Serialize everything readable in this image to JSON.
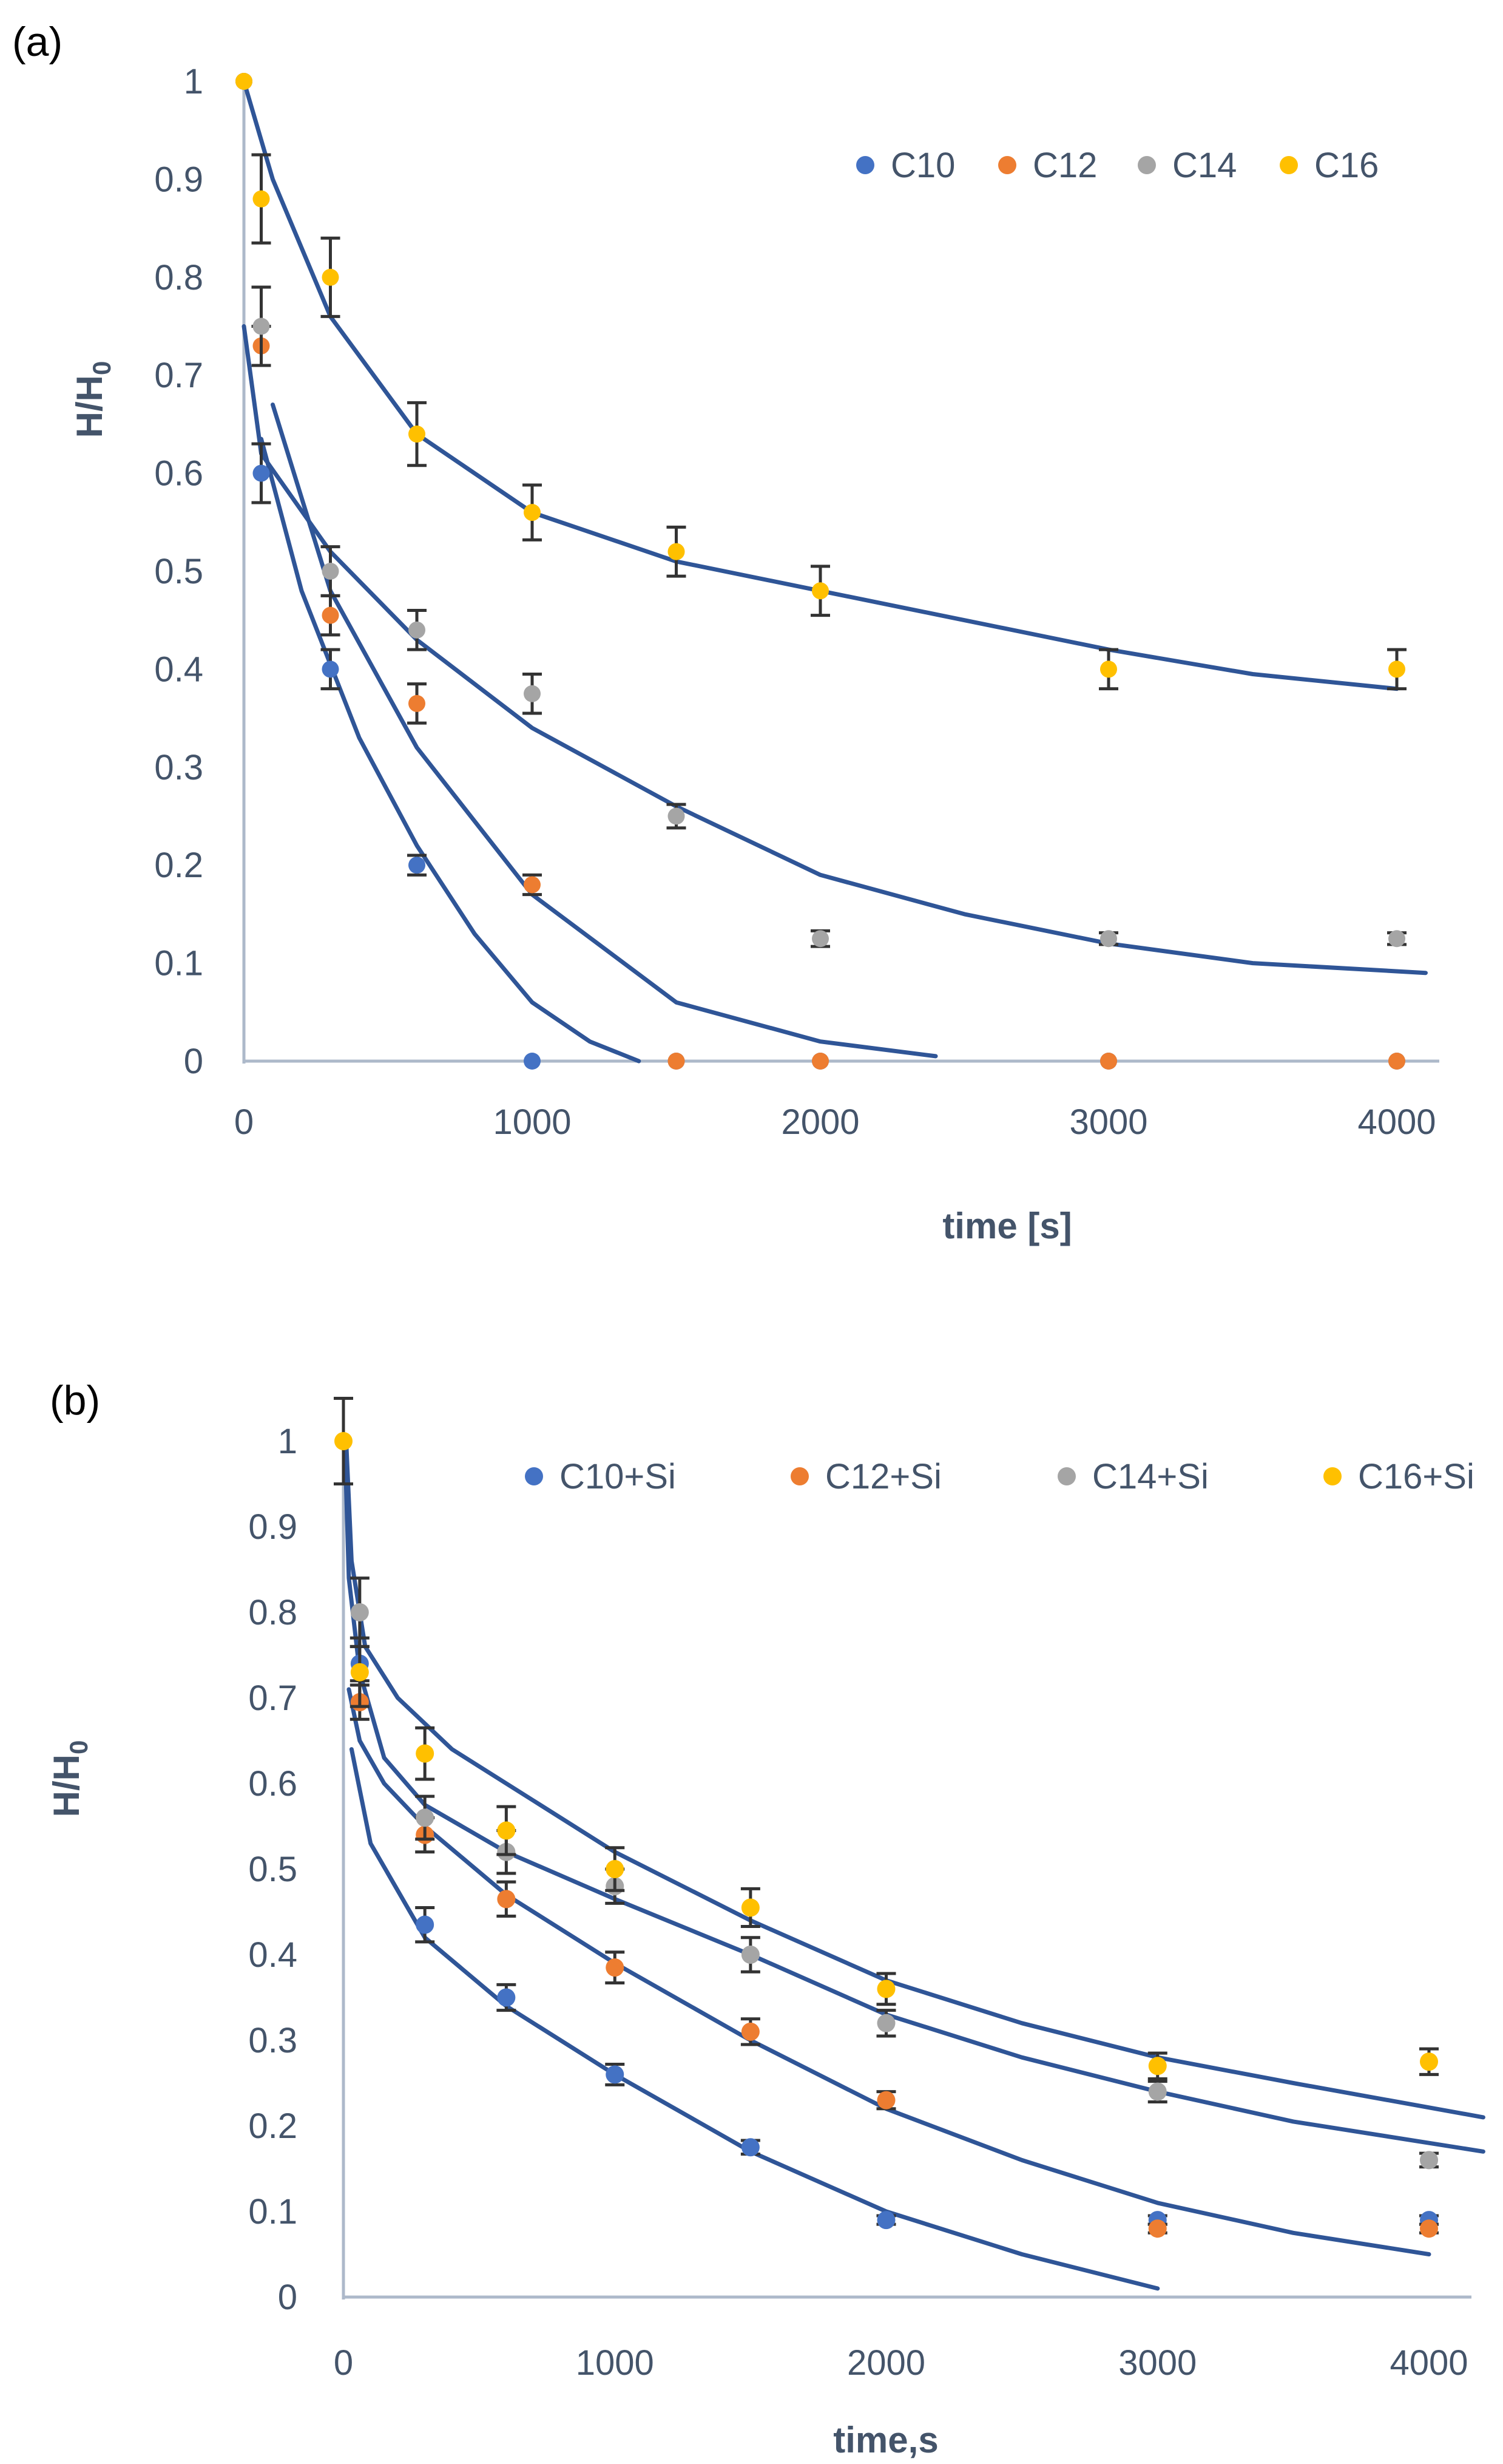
{
  "figure": {
    "panels": [
      {
        "panel_label": "(a)",
        "chart_data": {
          "type": "scatter",
          "xlabel": "time [s]",
          "ylabel_main": "H/H",
          "ylabel_sub": "0",
          "xlim": [
            0,
            4000
          ],
          "ylim": [
            0,
            1
          ],
          "xticks": [
            0,
            1000,
            2000,
            3000,
            4000
          ],
          "yticks": [
            0,
            0.1,
            0.2,
            0.3,
            0.4,
            0.5,
            0.6,
            0.7,
            0.8,
            0.9,
            1
          ],
          "legend_position": "top-right",
          "error_bars": true,
          "trendline_color": "#2F5597",
          "series": [
            {
              "name": "C10",
              "color": "#4472C4",
              "x": [
                0,
                60,
                300,
                600,
                1000,
                1500,
                2000,
                3000,
                4000
              ],
              "y": [
                1,
                0.6,
                0.4,
                0.2,
                0,
                0,
                0,
                0,
                0
              ],
              "err": [
                0,
                0.03,
                0.02,
                0.01,
                0,
                0,
                0,
                0,
                0
              ]
            },
            {
              "name": "C12",
              "color": "#ED7D31",
              "x": [
                0,
                60,
                300,
                600,
                1000,
                1500,
                2000,
                3000,
                4000
              ],
              "y": [
                1,
                0.73,
                0.455,
                0.365,
                0.18,
                0,
                0,
                0,
                0
              ],
              "err": [
                0,
                0.02,
                0.02,
                0.02,
                0.01,
                0,
                0,
                0,
                0
              ]
            },
            {
              "name": "C14",
              "color": "#A5A5A5",
              "x": [
                0,
                60,
                300,
                600,
                1000,
                1500,
                2000,
                3000,
                4000
              ],
              "y": [
                1,
                0.75,
                0.5,
                0.44,
                0.375,
                0.25,
                0.125,
                0.125,
                0.125
              ],
              "err": [
                0,
                0.04,
                0.025,
                0.02,
                0.02,
                0.012,
                0.008,
                0.006,
                0.006
              ]
            },
            {
              "name": "C16",
              "color": "#FFC000",
              "x": [
                0,
                60,
                300,
                600,
                1000,
                1500,
                2000,
                3000,
                4000
              ],
              "y": [
                1,
                0.88,
                0.8,
                0.64,
                0.56,
                0.52,
                0.48,
                0.4,
                0.4
              ],
              "err": [
                0,
                0.045,
                0.04,
                0.032,
                0.028,
                0.025,
                0.025,
                0.02,
                0.02
              ]
            }
          ],
          "trendlines": [
            {
              "x": [
                60,
                200,
                400,
                600,
                800,
                1000,
                1200,
                1370
              ],
              "y": [
                0.635,
                0.48,
                0.33,
                0.22,
                0.13,
                0.06,
                0.02,
                0
              ]
            },
            {
              "x": [
                100,
                300,
                600,
                1000,
                1500,
                2000,
                2400
              ],
              "y": [
                0.67,
                0.48,
                0.32,
                0.17,
                0.06,
                0.02,
                0.005
              ]
            },
            {
              "x": [
                0,
                60,
                300,
                600,
                1000,
                1500,
                2000,
                2500,
                3000,
                3500,
                4100
              ],
              "y": [
                0.75,
                0.62,
                0.52,
                0.43,
                0.34,
                0.26,
                0.19,
                0.15,
                0.12,
                0.1,
                0.09
              ]
            },
            {
              "x": [
                0,
                100,
                300,
                600,
                1000,
                1500,
                2000,
                2500,
                3000,
                3500,
                4000
              ],
              "y": [
                1,
                0.9,
                0.76,
                0.64,
                0.56,
                0.51,
                0.48,
                0.45,
                0.42,
                0.395,
                0.38
              ]
            }
          ]
        }
      },
      {
        "panel_label": "(b)",
        "chart_data": {
          "type": "scatter",
          "xlabel": "time,s",
          "ylabel_main": "H/H",
          "ylabel_sub": "0",
          "xlim": [
            0,
            4000
          ],
          "ylim": [
            0,
            1
          ],
          "xticks": [
            0,
            1000,
            2000,
            3000,
            4000
          ],
          "yticks": [
            0,
            0.1,
            0.2,
            0.3,
            0.4,
            0.5,
            0.6,
            0.7,
            0.8,
            0.9,
            1
          ],
          "legend_position": "top",
          "error_bars": true,
          "trendline_color": "#2F5597",
          "series": [
            {
              "name": "C10+Si",
              "color": "#4472C4",
              "x": [
                60,
                300,
                600,
                1000,
                1500,
                2000,
                3000,
                4000
              ],
              "y": [
                0.74,
                0.435,
                0.35,
                0.26,
                0.175,
                0.09,
                0.09,
                0.09
              ],
              "err": [
                0.02,
                0.02,
                0.015,
                0.012,
                0.008,
                0.005,
                0.005,
                0.005
              ]
            },
            {
              "name": "C12+Si",
              "color": "#ED7D31",
              "x": [
                60,
                300,
                600,
                1000,
                1500,
                2000,
                3000,
                4000
              ],
              "y": [
                0.695,
                0.54,
                0.465,
                0.385,
                0.31,
                0.23,
                0.08,
                0.08
              ],
              "err": [
                0.02,
                0.02,
                0.02,
                0.018,
                0.015,
                0.01,
                0.005,
                0.005
              ]
            },
            {
              "name": "C14+Si",
              "color": "#A5A5A5",
              "x": [
                60,
                300,
                600,
                1000,
                1500,
                2000,
                3000,
                4000
              ],
              "y": [
                0.8,
                0.56,
                0.52,
                0.48,
                0.4,
                0.32,
                0.24,
                0.16
              ],
              "err": [
                0.04,
                0.025,
                0.025,
                0.02,
                0.02,
                0.015,
                0.012,
                0.008
              ]
            },
            {
              "name": "C16+Si",
              "color": "#FFC000",
              "x": [
                0,
                60,
                300,
                600,
                1000,
                1500,
                2000,
                3000,
                4000
              ],
              "y": [
                1,
                0.73,
                0.635,
                0.545,
                0.5,
                0.455,
                0.36,
                0.27,
                0.275
              ],
              "err": [
                0.05,
                0.04,
                0.03,
                0.028,
                0.025,
                0.022,
                0.018,
                0.015,
                0.015
              ]
            }
          ],
          "trendlines": [
            {
              "x": [
                30,
                100,
                300,
                600,
                1000,
                1500,
                2000,
                2500,
                3000
              ],
              "y": [
                0.64,
                0.53,
                0.42,
                0.34,
                0.26,
                0.17,
                0.1,
                0.05,
                0.01
              ]
            },
            {
              "x": [
                20,
                60,
                150,
                300,
                600,
                1000,
                1500,
                2000,
                2500,
                3000,
                3500,
                4000
              ],
              "y": [
                0.71,
                0.65,
                0.6,
                0.55,
                0.47,
                0.39,
                0.3,
                0.22,
                0.16,
                0.11,
                0.075,
                0.05
              ]
            },
            {
              "x": [
                5,
                20,
                60,
                150,
                300,
                600,
                1000,
                1500,
                2000,
                2500,
                3000,
                3500,
                4200
              ],
              "y": [
                1.0,
                0.84,
                0.73,
                0.63,
                0.575,
                0.52,
                0.465,
                0.4,
                0.33,
                0.28,
                0.24,
                0.205,
                0.17
              ]
            },
            {
              "x": [
                10,
                30,
                80,
                200,
                400,
                700,
                1000,
                1500,
                2000,
                2500,
                3000,
                3500,
                4200
              ],
              "y": [
                1.0,
                0.86,
                0.76,
                0.7,
                0.64,
                0.58,
                0.52,
                0.44,
                0.37,
                0.32,
                0.28,
                0.25,
                0.21
              ]
            }
          ]
        }
      }
    ]
  }
}
